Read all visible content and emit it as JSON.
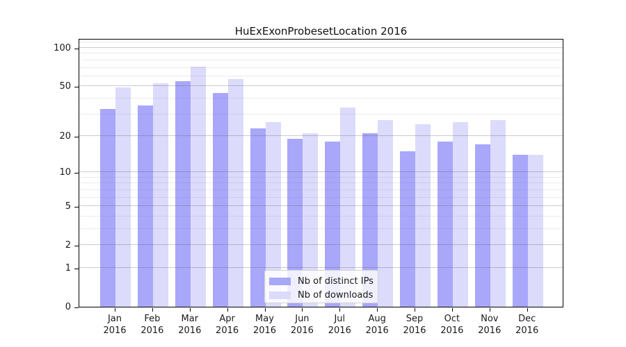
{
  "title": "HuExExonProbesetLocation 2016",
  "legend": {
    "items": [
      {
        "label": "Nb of distinct IPs",
        "color": "#a8a7fa"
      },
      {
        "label": "Nb of downloads",
        "color": "#dcdbfb"
      }
    ]
  },
  "chart_data": {
    "type": "bar",
    "title": "HuExExonProbesetLocation 2016",
    "categories": [
      "Jan",
      "Feb",
      "Mar",
      "Apr",
      "May",
      "Jun",
      "Jul",
      "Aug",
      "Sep",
      "Oct",
      "Nov",
      "Dec"
    ],
    "category_year": "2016",
    "series": [
      {
        "name": "Nb of distinct IPs",
        "color": "#a8a7fa",
        "values": [
          33,
          35,
          55,
          44,
          23,
          19,
          18,
          21,
          15,
          18,
          17,
          14
        ]
      },
      {
        "name": "Nb of downloads",
        "color": "#dcdbfb",
        "values": [
          49,
          53,
          71,
          57,
          26,
          21,
          34,
          27,
          25,
          26,
          27,
          14
        ]
      }
    ],
    "y_axis": {
      "scale": "log10(1+v)",
      "tick_values": [
        0,
        1,
        2,
        5,
        10,
        20,
        50,
        100
      ],
      "tick_labels": [
        "0",
        "1",
        "2",
        "5",
        "10",
        "20",
        "50",
        "100"
      ],
      "minor_gridline_values": [
        3,
        4,
        6,
        7,
        8,
        9,
        30,
        40,
        60,
        70,
        80,
        90,
        110
      ],
      "range": [
        0,
        119
      ]
    },
    "grid": true,
    "legend_position": "lower center"
  },
  "colors": {
    "bar_ips": "#a8a7fa",
    "bar_downloads": "#dcdbfb",
    "axis": "#000000",
    "major_grid": "#c6c6c6",
    "minor_grid": "#ebebeb",
    "background": "#ffffff"
  }
}
